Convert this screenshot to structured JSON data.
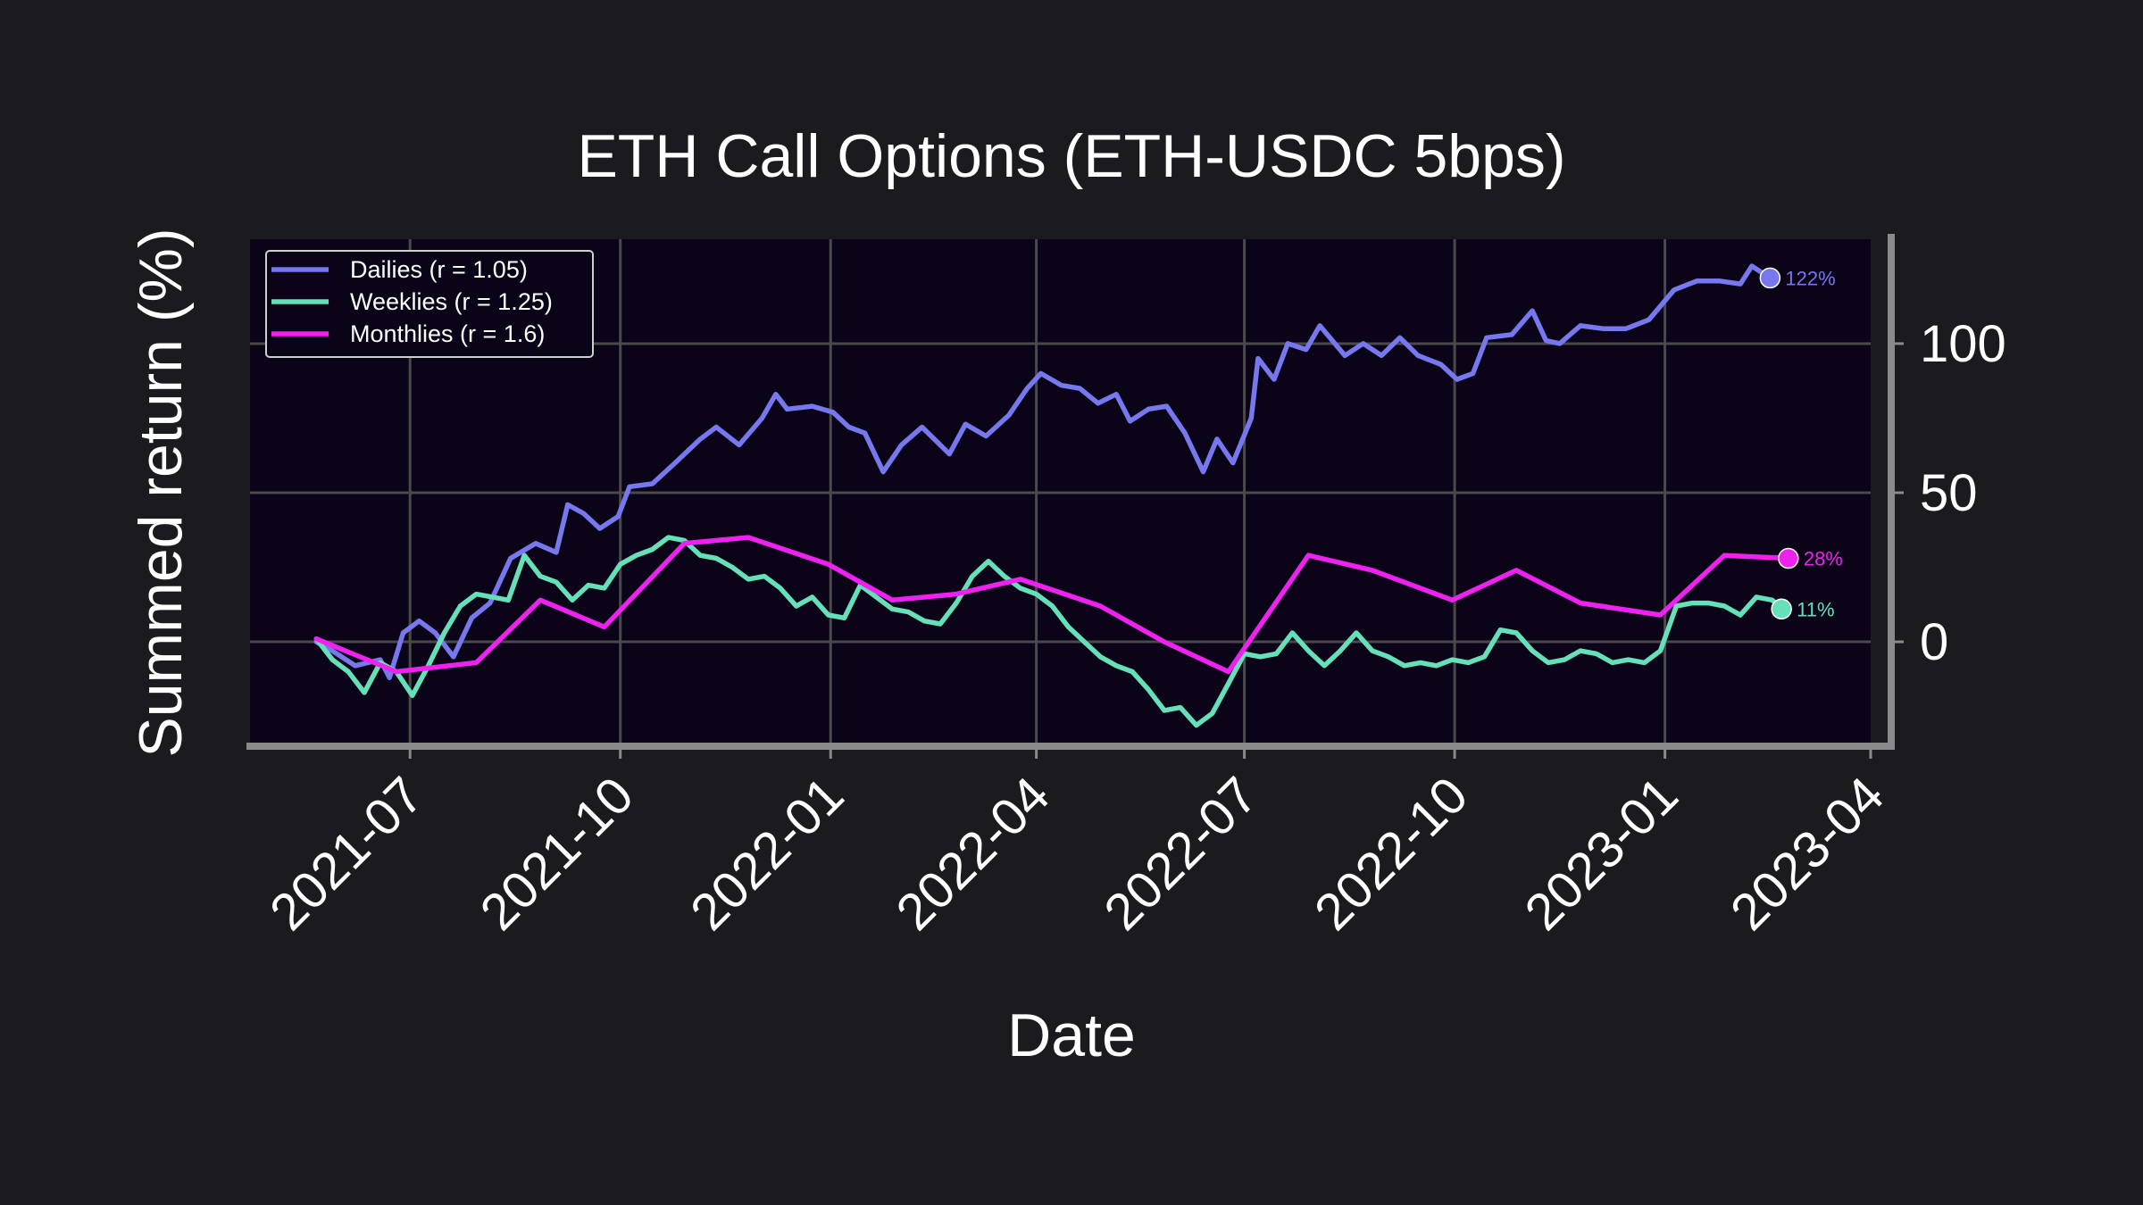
{
  "chart_data": {
    "type": "line",
    "title": "ETH Call Options (ETH-USDC 5bps)",
    "xlabel": "Date",
    "ylabel": "Summed return (%)",
    "xlim": [
      "2021-04-22",
      "2023-04-01"
    ],
    "ylim": [
      -35,
      135
    ],
    "x_ticks": [
      "2021-07",
      "2021-10",
      "2022-01",
      "2022-04",
      "2022-07",
      "2022-10",
      "2023-01",
      "2023-04"
    ],
    "y_ticks": [
      0,
      50,
      100
    ],
    "grid": true,
    "legend_position": "upper-left",
    "colors": {
      "page_background": "#1b1a1f",
      "plot_background": "#0b0318",
      "grid": "#4a4a4a",
      "axis_spine": "#8a8a8a",
      "text": "#ffffff"
    },
    "series": [
      {
        "name": "Dailies (r = 1.05)",
        "color": "#7777ee",
        "end_label": "122%",
        "points": [
          [
            "2021-05-21",
            0
          ],
          [
            "2021-05-28",
            -3
          ],
          [
            "2021-06-07",
            -8
          ],
          [
            "2021-06-18",
            -6
          ],
          [
            "2021-06-22",
            -12
          ],
          [
            "2021-06-28",
            3
          ],
          [
            "2021-07-05",
            7
          ],
          [
            "2021-07-12",
            3
          ],
          [
            "2021-07-20",
            -5
          ],
          [
            "2021-07-28",
            8
          ],
          [
            "2021-08-05",
            13
          ],
          [
            "2021-08-14",
            28
          ],
          [
            "2021-08-25",
            33
          ],
          [
            "2021-09-03",
            30
          ],
          [
            "2021-09-08",
            46
          ],
          [
            "2021-09-15",
            43
          ],
          [
            "2021-09-22",
            38
          ],
          [
            "2021-09-30",
            42
          ],
          [
            "2021-10-05",
            52
          ],
          [
            "2021-10-15",
            53
          ],
          [
            "2021-10-25",
            60
          ],
          [
            "2021-11-05",
            68
          ],
          [
            "2021-11-12",
            72
          ],
          [
            "2021-11-22",
            66
          ],
          [
            "2021-12-02",
            75
          ],
          [
            "2021-12-08",
            83
          ],
          [
            "2021-12-13",
            78
          ],
          [
            "2021-12-24",
            79
          ],
          [
            "2022-01-02",
            77
          ],
          [
            "2022-01-09",
            72
          ],
          [
            "2022-01-16",
            70
          ],
          [
            "2022-01-24",
            57
          ],
          [
            "2022-02-01",
            66
          ],
          [
            "2022-02-10",
            72
          ],
          [
            "2022-02-22",
            63
          ],
          [
            "2022-03-01",
            73
          ],
          [
            "2022-03-10",
            69
          ],
          [
            "2022-03-20",
            76
          ],
          [
            "2022-03-28",
            85
          ],
          [
            "2022-04-03",
            90
          ],
          [
            "2022-04-12",
            86
          ],
          [
            "2022-04-20",
            85
          ],
          [
            "2022-04-28",
            80
          ],
          [
            "2022-05-06",
            83
          ],
          [
            "2022-05-12",
            74
          ],
          [
            "2022-05-20",
            78
          ],
          [
            "2022-05-28",
            79
          ],
          [
            "2022-06-05",
            70
          ],
          [
            "2022-06-13",
            57
          ],
          [
            "2022-06-19",
            68
          ],
          [
            "2022-06-26",
            60
          ],
          [
            "2022-07-04",
            75
          ],
          [
            "2022-07-07",
            95
          ],
          [
            "2022-07-14",
            88
          ],
          [
            "2022-07-20",
            100
          ],
          [
            "2022-07-28",
            98
          ],
          [
            "2022-08-03",
            106
          ],
          [
            "2022-08-14",
            96
          ],
          [
            "2022-08-22",
            100
          ],
          [
            "2022-08-30",
            96
          ],
          [
            "2022-09-07",
            102
          ],
          [
            "2022-09-15",
            96
          ],
          [
            "2022-09-25",
            93
          ],
          [
            "2022-10-02",
            88
          ],
          [
            "2022-10-09",
            90
          ],
          [
            "2022-10-15",
            102
          ],
          [
            "2022-10-26",
            103
          ],
          [
            "2022-11-04",
            111
          ],
          [
            "2022-11-10",
            101
          ],
          [
            "2022-11-16",
            100
          ],
          [
            "2022-11-25",
            106
          ],
          [
            "2022-12-05",
            105
          ],
          [
            "2022-12-15",
            105
          ],
          [
            "2022-12-25",
            108
          ],
          [
            "2023-01-05",
            118
          ],
          [
            "2023-01-15",
            121
          ],
          [
            "2023-01-25",
            121
          ],
          [
            "2023-02-03",
            120
          ],
          [
            "2023-02-08",
            126
          ],
          [
            "2023-02-16",
            122
          ]
        ]
      },
      {
        "name": "Weeklies (r = 1.25)",
        "color": "#66e0b8",
        "end_label": "11%",
        "points": [
          [
            "2021-05-21",
            1
          ],
          [
            "2021-05-28",
            -6
          ],
          [
            "2021-06-04",
            -10
          ],
          [
            "2021-06-11",
            -17
          ],
          [
            "2021-06-18",
            -7
          ],
          [
            "2021-06-25",
            -10
          ],
          [
            "2021-07-02",
            -18
          ],
          [
            "2021-07-09",
            -8
          ],
          [
            "2021-07-16",
            3
          ],
          [
            "2021-07-23",
            12
          ],
          [
            "2021-07-30",
            16
          ],
          [
            "2021-08-06",
            15
          ],
          [
            "2021-08-13",
            14
          ],
          [
            "2021-08-20",
            29
          ],
          [
            "2021-08-27",
            22
          ],
          [
            "2021-09-03",
            20
          ],
          [
            "2021-09-10",
            14
          ],
          [
            "2021-09-17",
            19
          ],
          [
            "2021-09-24",
            18
          ],
          [
            "2021-10-01",
            26
          ],
          [
            "2021-10-08",
            29
          ],
          [
            "2021-10-15",
            31
          ],
          [
            "2021-10-22",
            35
          ],
          [
            "2021-10-29",
            34
          ],
          [
            "2021-11-05",
            29
          ],
          [
            "2021-11-12",
            28
          ],
          [
            "2021-11-19",
            25
          ],
          [
            "2021-11-26",
            21
          ],
          [
            "2021-12-03",
            22
          ],
          [
            "2021-12-10",
            18
          ],
          [
            "2021-12-17",
            12
          ],
          [
            "2021-12-24",
            15
          ],
          [
            "2021-12-31",
            9
          ],
          [
            "2022-01-07",
            8
          ],
          [
            "2022-01-14",
            19
          ],
          [
            "2022-01-21",
            15
          ],
          [
            "2022-01-28",
            11
          ],
          [
            "2022-02-04",
            10
          ],
          [
            "2022-02-11",
            7
          ],
          [
            "2022-02-18",
            6
          ],
          [
            "2022-02-25",
            13
          ],
          [
            "2022-03-04",
            22
          ],
          [
            "2022-03-11",
            27
          ],
          [
            "2022-03-18",
            22
          ],
          [
            "2022-03-25",
            18
          ],
          [
            "2022-04-01",
            16
          ],
          [
            "2022-04-08",
            12
          ],
          [
            "2022-04-15",
            5
          ],
          [
            "2022-04-22",
            0
          ],
          [
            "2022-04-29",
            -5
          ],
          [
            "2022-05-06",
            -8
          ],
          [
            "2022-05-13",
            -10
          ],
          [
            "2022-05-20",
            -16
          ],
          [
            "2022-05-27",
            -23
          ],
          [
            "2022-06-03",
            -22
          ],
          [
            "2022-06-10",
            -28
          ],
          [
            "2022-06-17",
            -24
          ],
          [
            "2022-06-24",
            -14
          ],
          [
            "2022-07-01",
            -4
          ],
          [
            "2022-07-08",
            -5
          ],
          [
            "2022-07-15",
            -4
          ],
          [
            "2022-07-22",
            3
          ],
          [
            "2022-07-29",
            -3
          ],
          [
            "2022-08-05",
            -8
          ],
          [
            "2022-08-12",
            -3
          ],
          [
            "2022-08-19",
            3
          ],
          [
            "2022-08-26",
            -3
          ],
          [
            "2022-09-02",
            -5
          ],
          [
            "2022-09-09",
            -8
          ],
          [
            "2022-09-16",
            -7
          ],
          [
            "2022-09-23",
            -8
          ],
          [
            "2022-09-30",
            -6
          ],
          [
            "2022-10-07",
            -7
          ],
          [
            "2022-10-14",
            -5
          ],
          [
            "2022-10-21",
            4
          ],
          [
            "2022-10-28",
            3
          ],
          [
            "2022-11-04",
            -3
          ],
          [
            "2022-11-11",
            -7
          ],
          [
            "2022-11-18",
            -6
          ],
          [
            "2022-11-25",
            -3
          ],
          [
            "2022-12-02",
            -4
          ],
          [
            "2022-12-09",
            -7
          ],
          [
            "2022-12-16",
            -6
          ],
          [
            "2022-12-23",
            -7
          ],
          [
            "2022-12-30",
            -3
          ],
          [
            "2023-01-06",
            12
          ],
          [
            "2023-01-13",
            13
          ],
          [
            "2023-01-20",
            13
          ],
          [
            "2023-01-27",
            12
          ],
          [
            "2023-02-03",
            9
          ],
          [
            "2023-02-10",
            15
          ],
          [
            "2023-02-17",
            14
          ],
          [
            "2023-02-21",
            11
          ]
        ]
      },
      {
        "name": "Monthlies (r = 1.6)",
        "color": "#ee22ee",
        "end_label": "28%",
        "points": [
          [
            "2021-05-21",
            1
          ],
          [
            "2021-06-25",
            -10
          ],
          [
            "2021-07-30",
            -7
          ],
          [
            "2021-08-27",
            14
          ],
          [
            "2021-09-24",
            5
          ],
          [
            "2021-10-29",
            33
          ],
          [
            "2021-11-26",
            35
          ],
          [
            "2021-12-31",
            26
          ],
          [
            "2022-01-28",
            14
          ],
          [
            "2022-02-25",
            16
          ],
          [
            "2022-03-25",
            21
          ],
          [
            "2022-04-29",
            12
          ],
          [
            "2022-05-27",
            0
          ],
          [
            "2022-06-24",
            -10
          ],
          [
            "2022-07-29",
            29
          ],
          [
            "2022-08-26",
            24
          ],
          [
            "2022-09-30",
            14
          ],
          [
            "2022-10-28",
            24
          ],
          [
            "2022-11-25",
            13
          ],
          [
            "2022-12-30",
            9
          ],
          [
            "2023-01-27",
            29
          ],
          [
            "2023-02-24",
            28
          ]
        ]
      }
    ]
  }
}
